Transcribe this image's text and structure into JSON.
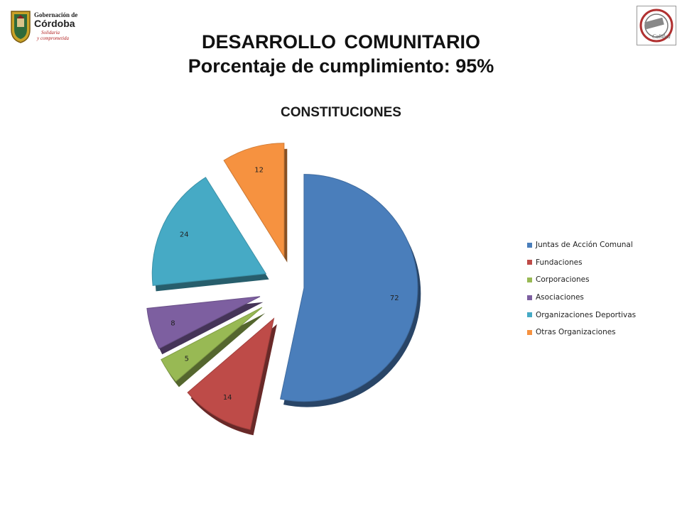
{
  "header": {
    "logo_left": {
      "line1": "Gobernación de",
      "line2": "Córdoba",
      "line3": "Solidaria",
      "line4": "y comprometida"
    },
    "logo_right": {
      "line1": "Calidad"
    },
    "title": "DESARROLLO  COMUNITARIO",
    "subtitle": "Porcentaje de cumplimiento: 95%"
  },
  "chart_data": {
    "type": "pie",
    "title": "CONSTITUCIONES",
    "categories": [
      "Juntas de Acción Comunal",
      "Fundaciones",
      "Corporaciones",
      "Asociaciones",
      "Organizaciones Deportivas",
      "Otras Organizaciones"
    ],
    "values": [
      72,
      14,
      5,
      8,
      24,
      12
    ],
    "colors": [
      "#4a7ebb",
      "#be4b48",
      "#98b954",
      "#7d5fa0",
      "#46aac5",
      "#f69240"
    ],
    "exploded": true,
    "three_d": true,
    "data_labels": true,
    "legend_position": "right"
  }
}
